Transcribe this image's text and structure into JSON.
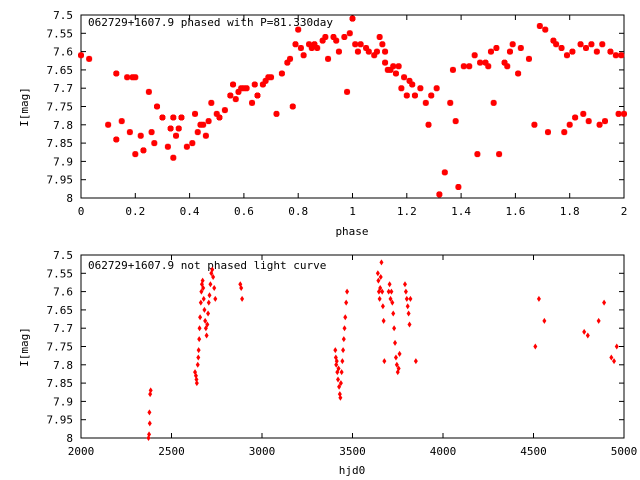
{
  "chart_data": [
    {
      "type": "scatter",
      "title": "062729+1607.9 phased with P=81.330day",
      "xlabel": "phase",
      "ylabel": "I[mag]",
      "xlim": [
        0,
        2
      ],
      "ylim": [
        8,
        7.5
      ],
      "y_inverted": true,
      "xticks": [
        "0",
        "0.2",
        "0.4",
        "0.6",
        "0.8",
        "1",
        "1.2",
        "1.4",
        "1.6",
        "1.8",
        "2"
      ],
      "yticks": [
        "7.5",
        "7.55",
        "7.6",
        "7.65",
        "7.7",
        "7.75",
        "7.8",
        "7.85",
        "7.9",
        "7.95",
        "8"
      ],
      "marker_color": "#ff0000",
      "series": [
        {
          "points": [
            [
              0.0,
              7.61
            ],
            [
              0.03,
              7.62
            ],
            [
              0.1,
              7.8
            ],
            [
              0.13,
              7.66
            ],
            [
              0.13,
              7.84
            ],
            [
              0.15,
              7.79
            ],
            [
              0.17,
              7.67
            ],
            [
              0.18,
              7.82
            ],
            [
              0.19,
              7.67
            ],
            [
              0.2,
              7.67
            ],
            [
              0.2,
              7.88
            ],
            [
              0.22,
              7.83
            ],
            [
              0.23,
              7.87
            ],
            [
              0.25,
              7.71
            ],
            [
              0.26,
              7.82
            ],
            [
              0.27,
              7.85
            ],
            [
              0.28,
              7.75
            ],
            [
              0.3,
              7.78
            ],
            [
              0.32,
              7.86
            ],
            [
              0.33,
              7.81
            ],
            [
              0.34,
              7.78
            ],
            [
              0.34,
              7.89
            ],
            [
              0.35,
              7.83
            ],
            [
              0.36,
              7.81
            ],
            [
              0.37,
              7.78
            ],
            [
              0.39,
              7.86
            ],
            [
              0.41,
              7.85
            ],
            [
              0.42,
              7.77
            ],
            [
              0.43,
              7.82
            ],
            [
              0.44,
              7.8
            ],
            [
              0.45,
              7.8
            ],
            [
              0.46,
              7.83
            ],
            [
              0.47,
              7.79
            ],
            [
              0.48,
              7.74
            ],
            [
              0.5,
              7.77
            ],
            [
              0.51,
              7.78
            ],
            [
              0.53,
              7.76
            ],
            [
              0.55,
              7.72
            ],
            [
              0.56,
              7.69
            ],
            [
              0.57,
              7.73
            ],
            [
              0.58,
              7.71
            ],
            [
              0.59,
              7.7
            ],
            [
              0.6,
              7.7
            ],
            [
              0.61,
              7.7
            ],
            [
              0.63,
              7.74
            ],
            [
              0.64,
              7.69
            ],
            [
              0.65,
              7.72
            ],
            [
              0.67,
              7.69
            ],
            [
              0.68,
              7.68
            ],
            [
              0.69,
              7.67
            ],
            [
              0.7,
              7.67
            ],
            [
              0.72,
              7.77
            ],
            [
              0.74,
              7.66
            ],
            [
              0.76,
              7.63
            ],
            [
              0.77,
              7.62
            ],
            [
              0.78,
              7.75
            ],
            [
              0.79,
              7.58
            ],
            [
              0.8,
              7.54
            ],
            [
              0.81,
              7.59
            ],
            [
              0.82,
              7.61
            ],
            [
              0.84,
              7.58
            ],
            [
              0.85,
              7.59
            ],
            [
              0.86,
              7.58
            ],
            [
              0.87,
              7.59
            ],
            [
              0.89,
              7.57
            ],
            [
              0.9,
              7.56
            ],
            [
              0.91,
              7.62
            ],
            [
              0.93,
              7.56
            ],
            [
              0.94,
              7.57
            ],
            [
              0.95,
              7.6
            ],
            [
              0.97,
              7.56
            ],
            [
              0.98,
              7.71
            ],
            [
              0.99,
              7.55
            ],
            [
              1.0,
              7.51
            ],
            [
              1.01,
              7.58
            ],
            [
              1.02,
              7.6
            ],
            [
              1.03,
              7.58
            ],
            [
              1.05,
              7.59
            ],
            [
              1.06,
              7.6
            ],
            [
              1.08,
              7.61
            ],
            [
              1.09,
              7.6
            ],
            [
              1.1,
              7.56
            ],
            [
              1.11,
              7.58
            ],
            [
              1.12,
              7.6
            ],
            [
              1.12,
              7.63
            ],
            [
              1.13,
              7.65
            ],
            [
              1.14,
              7.65
            ],
            [
              1.15,
              7.64
            ],
            [
              1.16,
              7.66
            ],
            [
              1.17,
              7.64
            ],
            [
              1.18,
              7.7
            ],
            [
              1.19,
              7.67
            ],
            [
              1.2,
              7.72
            ],
            [
              1.21,
              7.68
            ],
            [
              1.22,
              7.69
            ],
            [
              1.23,
              7.72
            ],
            [
              1.25,
              7.7
            ],
            [
              1.27,
              7.74
            ],
            [
              1.28,
              7.8
            ],
            [
              1.29,
              7.72
            ],
            [
              1.31,
              7.7
            ],
            [
              1.32,
              7.99
            ],
            [
              1.34,
              7.93
            ],
            [
              1.36,
              7.74
            ],
            [
              1.37,
              7.65
            ],
            [
              1.38,
              7.79
            ],
            [
              1.39,
              7.97
            ],
            [
              1.41,
              7.64
            ],
            [
              1.43,
              7.64
            ],
            [
              1.45,
              7.61
            ],
            [
              1.46,
              7.88
            ],
            [
              1.47,
              7.63
            ],
            [
              1.49,
              7.63
            ],
            [
              1.5,
              7.64
            ],
            [
              1.51,
              7.6
            ],
            [
              1.52,
              7.74
            ],
            [
              1.53,
              7.59
            ],
            [
              1.54,
              7.88
            ],
            [
              1.56,
              7.63
            ],
            [
              1.57,
              7.64
            ],
            [
              1.58,
              7.6
            ],
            [
              1.59,
              7.58
            ],
            [
              1.61,
              7.66
            ],
            [
              1.62,
              7.59
            ],
            [
              1.65,
              7.62
            ],
            [
              1.67,
              7.8
            ],
            [
              1.69,
              7.53
            ],
            [
              1.71,
              7.54
            ],
            [
              1.72,
              7.82
            ],
            [
              1.74,
              7.57
            ],
            [
              1.75,
              7.58
            ],
            [
              1.77,
              7.59
            ],
            [
              1.78,
              7.82
            ],
            [
              1.79,
              7.61
            ],
            [
              1.8,
              7.8
            ],
            [
              1.81,
              7.6
            ],
            [
              1.82,
              7.78
            ],
            [
              1.84,
              7.58
            ],
            [
              1.85,
              7.77
            ],
            [
              1.86,
              7.59
            ],
            [
              1.87,
              7.79
            ],
            [
              1.88,
              7.58
            ],
            [
              1.9,
              7.6
            ],
            [
              1.91,
              7.8
            ],
            [
              1.92,
              7.58
            ],
            [
              1.93,
              7.79
            ],
            [
              1.95,
              7.6
            ],
            [
              1.97,
              7.61
            ],
            [
              1.98,
              7.77
            ],
            [
              1.99,
              7.61
            ],
            [
              2.0,
              7.77
            ]
          ]
        }
      ]
    },
    {
      "type": "scatter",
      "title": "062729+1607.9 not phased light curve",
      "xlabel": "hjd0",
      "ylabel": "I[mag]",
      "xlim": [
        2000,
        5000
      ],
      "ylim": [
        8,
        7.5
      ],
      "y_inverted": true,
      "xticks": [
        "2000",
        "2500",
        "3000",
        "3500",
        "4000",
        "4500",
        "5000"
      ],
      "yticks": [
        "7.5",
        "7.55",
        "7.6",
        "7.65",
        "7.7",
        "7.75",
        "7.8",
        "7.85",
        "7.9",
        "7.95",
        "8"
      ],
      "marker_color": "#ff0000",
      "series": [
        {
          "points": [
            [
              2373,
              8.0
            ],
            [
              2376,
              7.99
            ],
            [
              2378,
              7.93
            ],
            [
              2380,
              7.96
            ],
            [
              2382,
              7.88
            ],
            [
              2385,
              7.87
            ],
            [
              2630,
              7.82
            ],
            [
              2635,
              7.83
            ],
            [
              2638,
              7.84
            ],
            [
              2640,
              7.85
            ],
            [
              2645,
              7.8
            ],
            [
              2648,
              7.78
            ],
            [
              2650,
              7.76
            ],
            [
              2653,
              7.73
            ],
            [
              2655,
              7.7
            ],
            [
              2658,
              7.67
            ],
            [
              2662,
              7.63
            ],
            [
              2665,
              7.6
            ],
            [
              2668,
              7.58
            ],
            [
              2672,
              7.57
            ],
            [
              2675,
              7.59
            ],
            [
              2678,
              7.62
            ],
            [
              2682,
              7.65
            ],
            [
              2686,
              7.68
            ],
            [
              2690,
              7.7
            ],
            [
              2694,
              7.72
            ],
            [
              2698,
              7.69
            ],
            [
              2702,
              7.66
            ],
            [
              2706,
              7.63
            ],
            [
              2710,
              7.61
            ],
            [
              2715,
              7.58
            ],
            [
              2720,
              7.55
            ],
            [
              2725,
              7.54
            ],
            [
              2730,
              7.56
            ],
            [
              2736,
              7.59
            ],
            [
              2742,
              7.62
            ],
            [
              2880,
              7.58
            ],
            [
              2885,
              7.59
            ],
            [
              2890,
              7.62
            ],
            [
              3405,
              7.76
            ],
            [
              3408,
              7.78
            ],
            [
              3410,
              7.8
            ],
            [
              3413,
              7.79
            ],
            [
              3416,
              7.82
            ],
            [
              3420,
              7.84
            ],
            [
              3423,
              7.81
            ],
            [
              3426,
              7.86
            ],
            [
              3430,
              7.88
            ],
            [
              3433,
              7.89
            ],
            [
              3436,
              7.85
            ],
            [
              3440,
              7.82
            ],
            [
              3444,
              7.79
            ],
            [
              3448,
              7.76
            ],
            [
              3452,
              7.73
            ],
            [
              3456,
              7.7
            ],
            [
              3460,
              7.67
            ],
            [
              3465,
              7.63
            ],
            [
              3470,
              7.6
            ],
            [
              3640,
              7.55
            ],
            [
              3643,
              7.57
            ],
            [
              3646,
              7.6
            ],
            [
              3650,
              7.62
            ],
            [
              3653,
              7.59
            ],
            [
              3656,
              7.56
            ],
            [
              3660,
              7.52
            ],
            [
              3664,
              7.6
            ],
            [
              3668,
              7.64
            ],
            [
              3672,
              7.68
            ],
            [
              3676,
              7.79
            ],
            [
              3700,
              7.6
            ],
            [
              3705,
              7.58
            ],
            [
              3710,
              7.62
            ],
            [
              3715,
              7.6
            ],
            [
              3720,
              7.63
            ],
            [
              3725,
              7.66
            ],
            [
              3730,
              7.7
            ],
            [
              3735,
              7.74
            ],
            [
              3740,
              7.78
            ],
            [
              3745,
              7.8
            ],
            [
              3750,
              7.82
            ],
            [
              3755,
              7.81
            ],
            [
              3760,
              7.77
            ],
            [
              3790,
              7.58
            ],
            [
              3795,
              7.6
            ],
            [
              3800,
              7.62
            ],
            [
              3805,
              7.64
            ],
            [
              3810,
              7.66
            ],
            [
              3815,
              7.69
            ],
            [
              3820,
              7.62
            ],
            [
              3850,
              7.79
            ],
            [
              4510,
              7.75
            ],
            [
              4530,
              7.62
            ],
            [
              4560,
              7.68
            ],
            [
              4780,
              7.71
            ],
            [
              4800,
              7.72
            ],
            [
              4860,
              7.68
            ],
            [
              4890,
              7.63
            ],
            [
              4930,
              7.78
            ],
            [
              4945,
              7.79
            ],
            [
              4960,
              7.75
            ]
          ]
        }
      ]
    }
  ]
}
